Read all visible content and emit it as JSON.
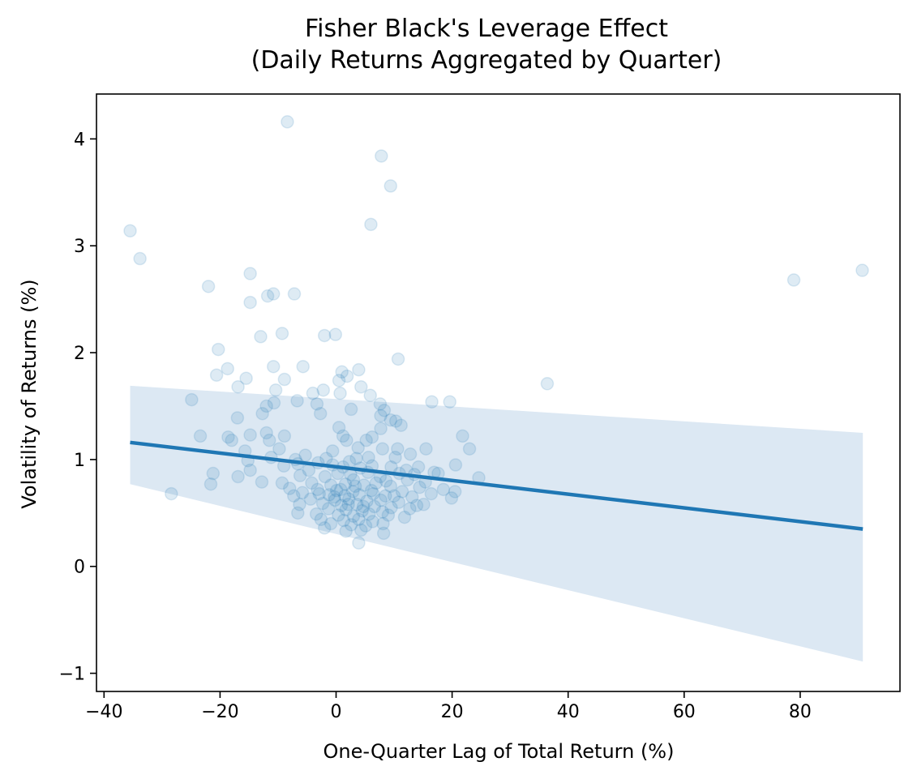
{
  "chart_data": {
    "type": "scatter",
    "title": "Fisher Black's Leverage Effect",
    "subtitle": "(Daily Returns Aggregated by Quarter)",
    "xlabel": "One-Quarter Lag of Total Return (%)",
    "ylabel": "Volatility of Returns (%)",
    "xlim": [
      -41.3,
      97.2
    ],
    "ylim": [
      -1.17,
      4.42
    ],
    "xticks": [
      -40,
      -20,
      0,
      20,
      40,
      60,
      80
    ],
    "yticks": [
      -1,
      0,
      1,
      2,
      3,
      4
    ],
    "xtick_labels": [
      "−40",
      "−20",
      "0",
      "20",
      "40",
      "60",
      "80"
    ],
    "ytick_labels": [
      "−1",
      "0",
      "1",
      "2",
      "3",
      "4"
    ],
    "grid": false,
    "point_color": "#1f77b4",
    "point_opacity": 0.15,
    "line_color": "#1f77b4",
    "band_color": "#dce8f3",
    "regression": {
      "x": [
        -35.5,
        90.8
      ],
      "y": [
        1.16,
        0.35
      ]
    },
    "confidence_band": {
      "x": [
        -35.5,
        90.8
      ],
      "lower": [
        0.77,
        -0.89
      ],
      "upper": [
        1.69,
        1.25
      ]
    },
    "points": [
      [
        -8.4,
        4.16
      ],
      [
        7.8,
        3.84
      ],
      [
        9.4,
        3.56
      ],
      [
        6.0,
        3.2
      ],
      [
        -35.5,
        3.14
      ],
      [
        -33.8,
        2.88
      ],
      [
        90.7,
        2.77
      ],
      [
        78.9,
        2.68
      ],
      [
        -14.8,
        2.74
      ],
      [
        -22.0,
        2.62
      ],
      [
        -10.8,
        2.55
      ],
      [
        -7.2,
        2.55
      ],
      [
        -11.8,
        2.53
      ],
      [
        -14.8,
        2.47
      ],
      [
        -9.3,
        2.18
      ],
      [
        -13.0,
        2.15
      ],
      [
        -0.1,
        2.17
      ],
      [
        -2.0,
        2.16
      ],
      [
        -20.3,
        2.03
      ],
      [
        -5.7,
        1.87
      ],
      [
        -10.8,
        1.87
      ],
      [
        -18.7,
        1.85
      ],
      [
        10.7,
        1.94
      ],
      [
        3.9,
        1.84
      ],
      [
        1.0,
        1.82
      ],
      [
        1.9,
        1.78
      ],
      [
        -20.6,
        1.79
      ],
      [
        -8.9,
        1.75
      ],
      [
        -15.5,
        1.76
      ],
      [
        -16.9,
        1.68
      ],
      [
        36.4,
        1.71
      ],
      [
        0.5,
        1.74
      ],
      [
        4.3,
        1.68
      ],
      [
        -10.4,
        1.65
      ],
      [
        -2.2,
        1.65
      ],
      [
        -4.0,
        1.62
      ],
      [
        0.7,
        1.62
      ],
      [
        5.9,
        1.6
      ],
      [
        -24.9,
        1.56
      ],
      [
        -6.7,
        1.55
      ],
      [
        -10.7,
        1.53
      ],
      [
        -3.3,
        1.52
      ],
      [
        7.6,
        1.52
      ],
      [
        16.5,
        1.54
      ],
      [
        19.6,
        1.54
      ],
      [
        -12.0,
        1.5
      ],
      [
        2.6,
        1.47
      ],
      [
        8.3,
        1.46
      ],
      [
        -12.7,
        1.43
      ],
      [
        7.7,
        1.41
      ],
      [
        -2.7,
        1.43
      ],
      [
        -17.0,
        1.39
      ],
      [
        9.4,
        1.37
      ],
      [
        10.3,
        1.36
      ],
      [
        11.2,
        1.32
      ],
      [
        0.5,
        1.3
      ],
      [
        7.7,
        1.29
      ],
      [
        -8.9,
        1.22
      ],
      [
        -14.8,
        1.23
      ],
      [
        -12.0,
        1.25
      ],
      [
        -23.4,
        1.22
      ],
      [
        -18.6,
        1.21
      ],
      [
        1.2,
        1.22
      ],
      [
        6.2,
        1.21
      ],
      [
        5.2,
        1.18
      ],
      [
        21.8,
        1.22
      ],
      [
        -11.5,
        1.18
      ],
      [
        -18.0,
        1.18
      ],
      [
        1.8,
        1.18
      ],
      [
        -9.8,
        1.1
      ],
      [
        -15.7,
        1.08
      ],
      [
        3.8,
        1.11
      ],
      [
        8.0,
        1.1
      ],
      [
        10.6,
        1.1
      ],
      [
        15.5,
        1.1
      ],
      [
        23.0,
        1.1
      ],
      [
        -0.6,
        1.08
      ],
      [
        -5.3,
        1.04
      ],
      [
        -11.2,
        1.02
      ],
      [
        -7.0,
        1.0
      ],
      [
        -1.7,
        1.01
      ],
      [
        2.3,
        0.98
      ],
      [
        -15.2,
        0.99
      ],
      [
        3.5,
        1.01
      ],
      [
        5.6,
        1.02
      ],
      [
        10.2,
        1.02
      ],
      [
        12.8,
        1.05
      ],
      [
        -6.6,
        0.96
      ],
      [
        -3.1,
        0.97
      ],
      [
        -0.6,
        0.95
      ],
      [
        1.2,
        0.93
      ],
      [
        4.2,
        0.92
      ],
      [
        6.2,
        0.94
      ],
      [
        9.5,
        0.93
      ],
      [
        12.1,
        0.9
      ],
      [
        14.2,
        0.93
      ],
      [
        16.9,
        0.88
      ],
      [
        20.6,
        0.95
      ],
      [
        -14.8,
        0.9
      ],
      [
        -21.2,
        0.87
      ],
      [
        -9.0,
        0.94
      ],
      [
        -4.7,
        0.9
      ],
      [
        0.3,
        0.87
      ],
      [
        2.5,
        0.86
      ],
      [
        5.5,
        0.88
      ],
      [
        7.6,
        0.84
      ],
      [
        10.9,
        0.87
      ],
      [
        13.5,
        0.86
      ],
      [
        17.6,
        0.87
      ],
      [
        24.6,
        0.83
      ],
      [
        -16.9,
        0.84
      ],
      [
        -6.2,
        0.85
      ],
      [
        -1.9,
        0.84
      ],
      [
        3.0,
        0.81
      ],
      [
        8.6,
        0.8
      ],
      [
        12.3,
        0.81
      ],
      [
        15.4,
        0.79
      ],
      [
        -12.8,
        0.79
      ],
      [
        -21.6,
        0.77
      ],
      [
        -9.3,
        0.78
      ],
      [
        -4.2,
        0.78
      ],
      [
        -0.9,
        0.76
      ],
      [
        1.6,
        0.77
      ],
      [
        4.8,
        0.76
      ],
      [
        6.9,
        0.78
      ],
      [
        9.4,
        0.75
      ],
      [
        14.4,
        0.74
      ],
      [
        18.5,
        0.72
      ],
      [
        20.5,
        0.7
      ],
      [
        -8.0,
        0.73
      ],
      [
        -3.2,
        0.72
      ],
      [
        0.1,
        0.71
      ],
      [
        2.9,
        0.7
      ],
      [
        6.1,
        0.71
      ],
      [
        11.4,
        0.7
      ],
      [
        16.4,
        0.68
      ],
      [
        -28.4,
        0.68
      ],
      [
        -7.3,
        0.66
      ],
      [
        -1.2,
        0.67
      ],
      [
        1.5,
        0.66
      ],
      [
        4.0,
        0.67
      ],
      [
        8.5,
        0.66
      ],
      [
        13.1,
        0.65
      ],
      [
        19.9,
        0.64
      ],
      [
        -4.4,
        0.63
      ],
      [
        -0.2,
        0.62
      ],
      [
        2.2,
        0.63
      ],
      [
        5.3,
        0.61
      ],
      [
        7.7,
        0.62
      ],
      [
        10.8,
        0.6
      ],
      [
        15.1,
        0.58
      ],
      [
        -6.3,
        0.58
      ],
      [
        -2.3,
        0.59
      ],
      [
        0.9,
        0.57
      ],
      [
        3.6,
        0.58
      ],
      [
        6.6,
        0.56
      ],
      [
        9.5,
        0.55
      ],
      [
        12.7,
        0.54
      ],
      [
        -1.3,
        0.54
      ],
      [
        1.7,
        0.53
      ],
      [
        4.5,
        0.52
      ],
      [
        8.0,
        0.51
      ],
      [
        -6.6,
        0.5
      ],
      [
        -3.4,
        0.49
      ],
      [
        0.4,
        0.48
      ],
      [
        3.0,
        0.47
      ],
      [
        5.7,
        0.49
      ],
      [
        9.0,
        0.48
      ],
      [
        11.8,
        0.46
      ],
      [
        -2.6,
        0.44
      ],
      [
        1.3,
        0.43
      ],
      [
        3.9,
        0.44
      ],
      [
        6.3,
        0.42
      ],
      [
        -0.9,
        0.4
      ],
      [
        2.6,
        0.39
      ],
      [
        5.1,
        0.38
      ],
      [
        8.1,
        0.4
      ],
      [
        -2.0,
        0.36
      ],
      [
        1.7,
        0.33
      ],
      [
        4.3,
        0.34
      ],
      [
        8.2,
        0.31
      ],
      [
        3.9,
        0.22
      ],
      [
        -5.8,
        0.69
      ],
      [
        -2.9,
        0.68
      ],
      [
        0.8,
        0.72
      ],
      [
        3.3,
        0.75
      ],
      [
        6.4,
        0.68
      ],
      [
        10.0,
        0.66
      ],
      [
        13.9,
        0.57
      ],
      [
        -0.3,
        0.65
      ],
      [
        2.1,
        0.58
      ],
      [
        4.7,
        0.56
      ]
    ]
  }
}
